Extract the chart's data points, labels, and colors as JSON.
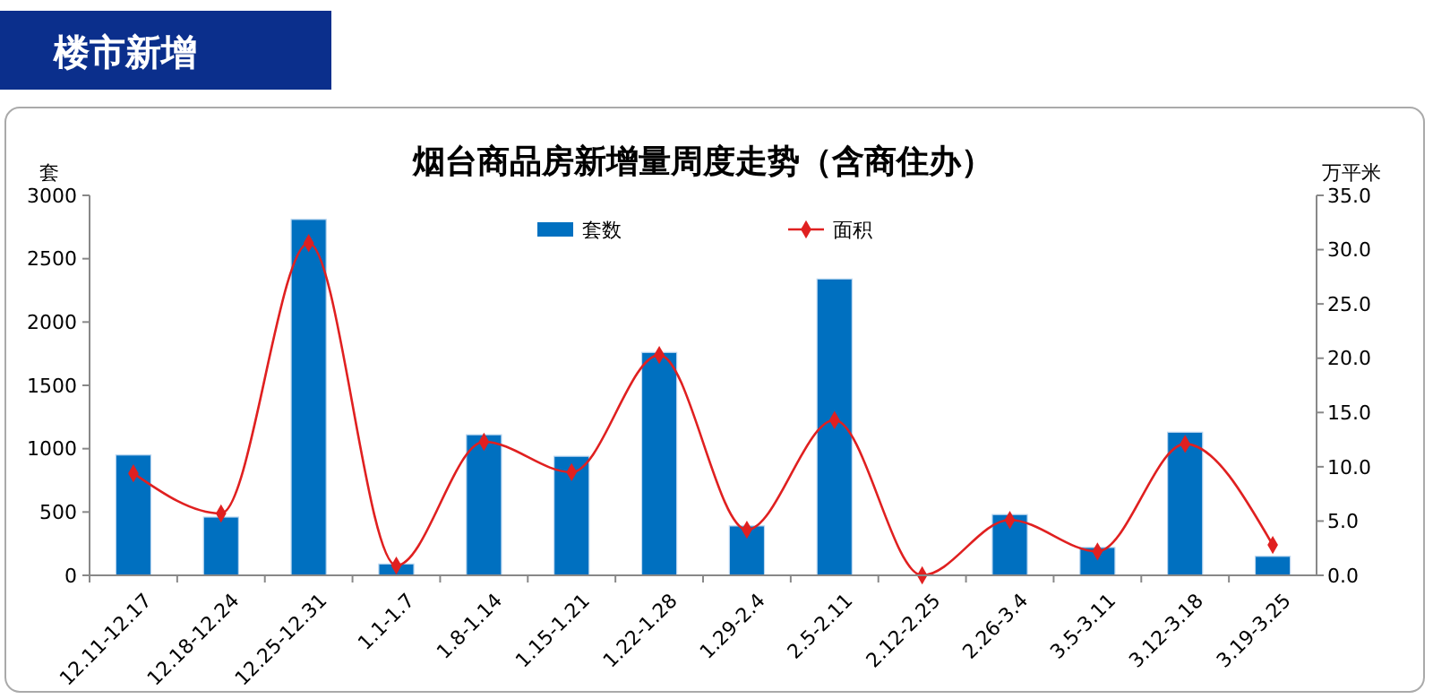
{
  "chart_data": {
    "type": "bar",
    "title": "烟台商品房新增量周度走势（含商住办）",
    "annotations": [
      "楼市新增"
    ],
    "ylabel": "套",
    "y2label": "万平米",
    "categories": [
      "12.11-12.17",
      "12.18-12.24",
      "12.25-12.31",
      "1.1-1.7",
      "1.8-1.14",
      "1.15-1.21",
      "1.22-1.28",
      "1.29-2.4",
      "2.5-2.11",
      "2.12-2.25",
      "2.26-3.4",
      "3.5-3.11",
      "3.12-3.18",
      "3.19-3.25"
    ],
    "series": [
      {
        "name": "套数",
        "color": "#0070c0",
        "values": [
          950,
          460,
          2810,
          90,
          1110,
          940,
          1760,
          390,
          2340,
          0,
          480,
          220,
          1130,
          150
        ]
      },
      {
        "name": "面积",
        "type": "line",
        "axis": "y2",
        "color": "#e02020",
        "marker": "diamond",
        "values": [
          9.4,
          5.7,
          30.6,
          0.9,
          12.3,
          9.5,
          20.3,
          4.2,
          14.3,
          0.0,
          5.1,
          2.2,
          12.1,
          2.8
        ]
      }
    ],
    "ylim": [
      0,
      3000
    ],
    "yticks": [
      0,
      500,
      1000,
      1500,
      2000,
      2500,
      3000
    ],
    "y2lim": [
      0,
      35
    ],
    "y2ticks": [
      {
        "value": 0,
        "label": "0.0"
      },
      {
        "value": 5,
        "label": "5.0"
      },
      {
        "value": 10,
        "label": "10.0"
      },
      {
        "value": 15,
        "label": "15.0"
      },
      {
        "value": 20,
        "label": "20.0"
      },
      {
        "value": 25,
        "label": "25.0"
      },
      {
        "value": 30,
        "label": "30.0"
      },
      {
        "value": 35,
        "label": "35.0"
      }
    ],
    "legend": "top"
  }
}
